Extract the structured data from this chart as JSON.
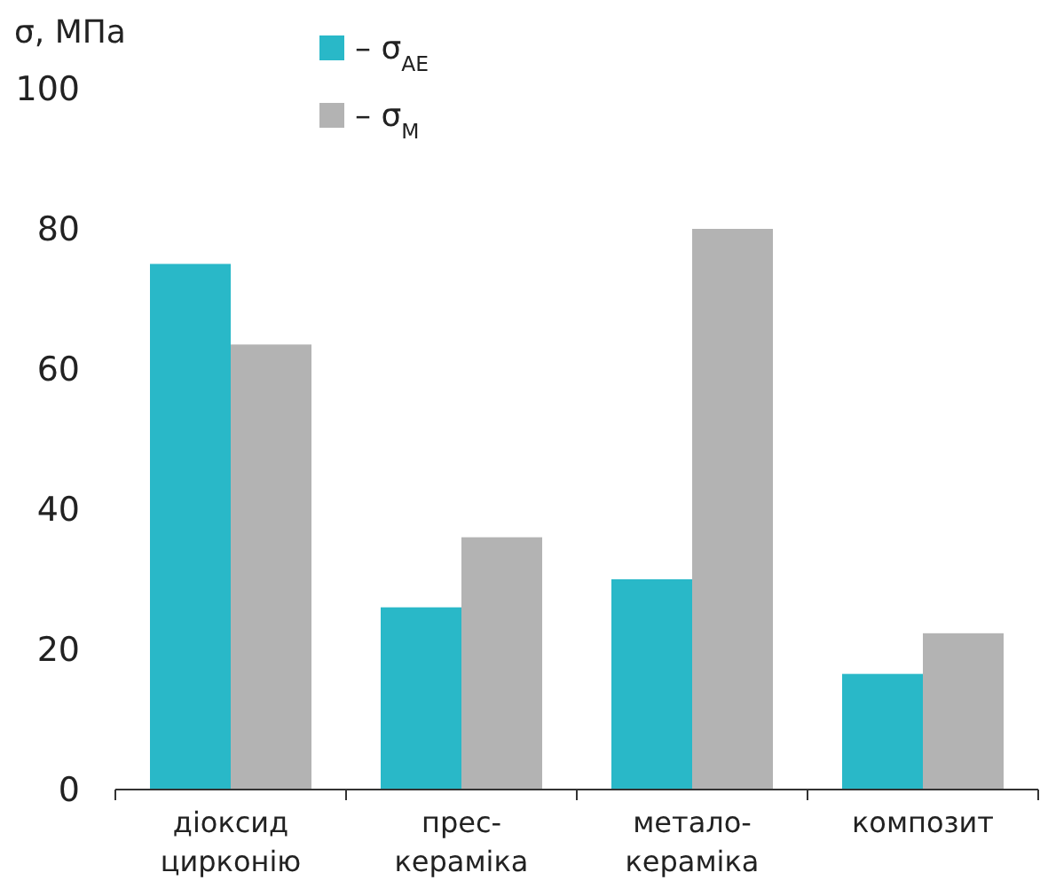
{
  "chart_data": {
    "type": "bar",
    "ylabel": "σ, МПа",
    "categories": [
      "діоксид\nцирконію",
      "прес-\nкераміка",
      "метало-\nкераміка",
      "композит"
    ],
    "series": [
      {
        "name": "– σ$_{АЕ}$",
        "color": "#29b8c8",
        "values": [
          75,
          26,
          30,
          16.5
        ]
      },
      {
        "name": "– σ$_{М}$",
        "color": "#b3b3b3",
        "values": [
          63.5,
          36,
          80,
          22.3
        ]
      }
    ],
    "ylim": [
      0,
      100
    ],
    "yticks": [
      0,
      20,
      40,
      60,
      80,
      100
    ],
    "grid": false,
    "legend": "top"
  }
}
